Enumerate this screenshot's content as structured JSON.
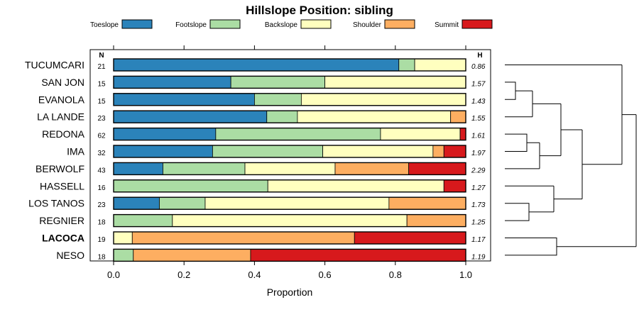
{
  "chart_data": {
    "type": "bar",
    "stacked": true,
    "orientation": "horizontal",
    "title": "Hillslope Position: sibling",
    "xlabel": "Proportion",
    "xlim": [
      0,
      1
    ],
    "x_ticks": [
      "0.0",
      "0.2",
      "0.4",
      "0.6",
      "0.8",
      "1.0"
    ],
    "n_header": "N",
    "h_header": "H",
    "legend_position": "top",
    "series": [
      {
        "name": "Toeslope",
        "color": "#2b83ba"
      },
      {
        "name": "Footslope",
        "color": "#abdda4"
      },
      {
        "name": "Backslope",
        "color": "#ffffbf"
      },
      {
        "name": "Shoulder",
        "color": "#fdae61"
      },
      {
        "name": "Summit",
        "color": "#d7191c"
      }
    ],
    "rows": [
      {
        "label": "TUCUMCARI",
        "n": "21",
        "h": "0.86",
        "bold": false,
        "values": [
          0.81,
          0.045,
          0.145,
          0,
          0
        ]
      },
      {
        "label": "SAN JON",
        "n": "15",
        "h": "1.57",
        "bold": false,
        "values": [
          0.333,
          0.267,
          0.4,
          0,
          0
        ]
      },
      {
        "label": "EVANOLA",
        "n": "15",
        "h": "1.43",
        "bold": false,
        "values": [
          0.4,
          0.133,
          0.467,
          0,
          0
        ]
      },
      {
        "label": "LA LANDE",
        "n": "23",
        "h": "1.55",
        "bold": false,
        "values": [
          0.435,
          0.087,
          0.435,
          0.043,
          0
        ]
      },
      {
        "label": "REDONA",
        "n": "62",
        "h": "1.61",
        "bold": false,
        "values": [
          0.29,
          0.468,
          0.226,
          0,
          0.016
        ]
      },
      {
        "label": "IMA",
        "n": "32",
        "h": "1.97",
        "bold": false,
        "values": [
          0.281,
          0.313,
          0.313,
          0.031,
          0.062
        ]
      },
      {
        "label": "BERWOLF",
        "n": "43",
        "h": "2.29",
        "bold": false,
        "values": [
          0.14,
          0.233,
          0.256,
          0.209,
          0.162
        ]
      },
      {
        "label": "HASSELL",
        "n": "16",
        "h": "1.27",
        "bold": false,
        "values": [
          0,
          0.438,
          0.5,
          0,
          0.062
        ]
      },
      {
        "label": "LOS TANOS",
        "n": "23",
        "h": "1.73",
        "bold": false,
        "values": [
          0.13,
          0.13,
          0.522,
          0.218,
          0
        ]
      },
      {
        "label": "REGNIER",
        "n": "18",
        "h": "1.25",
        "bold": false,
        "values": [
          0,
          0.167,
          0.666,
          0.167,
          0
        ]
      },
      {
        "label": "LACOCA",
        "n": "19",
        "h": "1.17",
        "bold": true,
        "values": [
          0,
          0,
          0.053,
          0.631,
          0.316
        ]
      },
      {
        "label": "NESO",
        "n": "18",
        "h": "1.19",
        "bold": false,
        "values": [
          0,
          0.056,
          0,
          0.333,
          0.611
        ]
      }
    ]
  }
}
